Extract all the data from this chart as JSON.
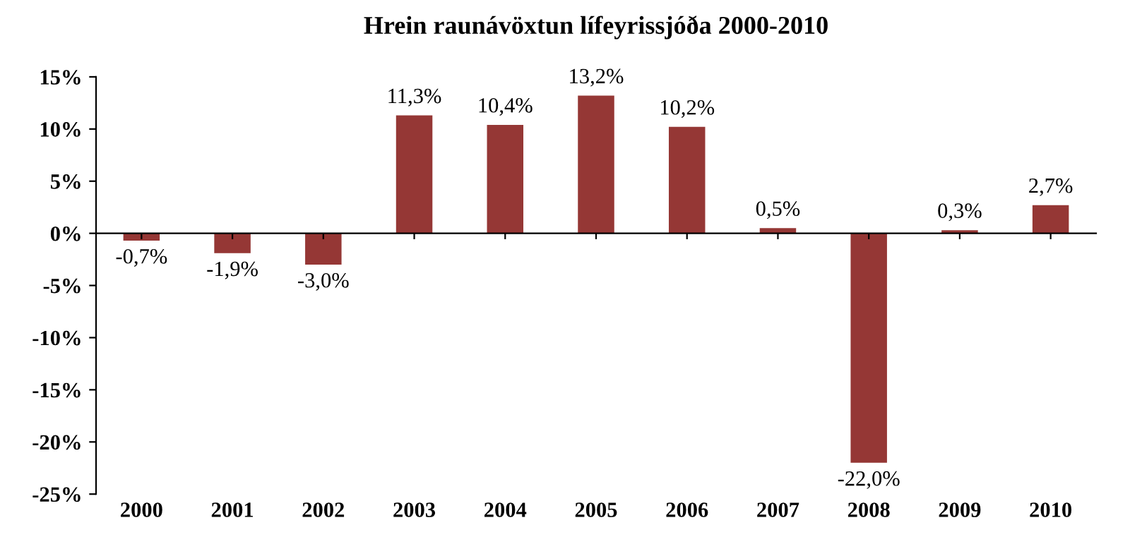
{
  "chart_data": {
    "type": "bar",
    "title": "Hrein raunávöxtun lífeyrissjóða 2000-2010",
    "categories": [
      "2000",
      "2001",
      "2002",
      "2003",
      "2004",
      "2005",
      "2006",
      "2007",
      "2008",
      "2009",
      "2010"
    ],
    "values": [
      -0.7,
      -1.9,
      -3.0,
      11.3,
      10.4,
      13.2,
      10.2,
      0.5,
      -22.0,
      0.3,
      2.7
    ],
    "value_labels": [
      "-0,7%",
      "-1,9%",
      "-3,0%",
      "11,3%",
      "10,4%",
      "13,2%",
      "10,2%",
      "0,5%",
      "-22,0%",
      "0,3%",
      "2,7%"
    ],
    "color": "#953735",
    "ylim": [
      -25,
      15
    ],
    "yticks": [
      {
        "value": -25,
        "label": "-25%"
      },
      {
        "value": -20,
        "label": "-20%"
      },
      {
        "value": -15,
        "label": "-15%"
      },
      {
        "value": -10,
        "label": "-10%"
      },
      {
        "value": -5,
        "label": "-5%"
      },
      {
        "value": 0,
        "label": "0%"
      },
      {
        "value": 5,
        "label": "5%"
      },
      {
        "value": 10,
        "label": "10%"
      },
      {
        "value": 15,
        "label": "15%"
      }
    ]
  }
}
